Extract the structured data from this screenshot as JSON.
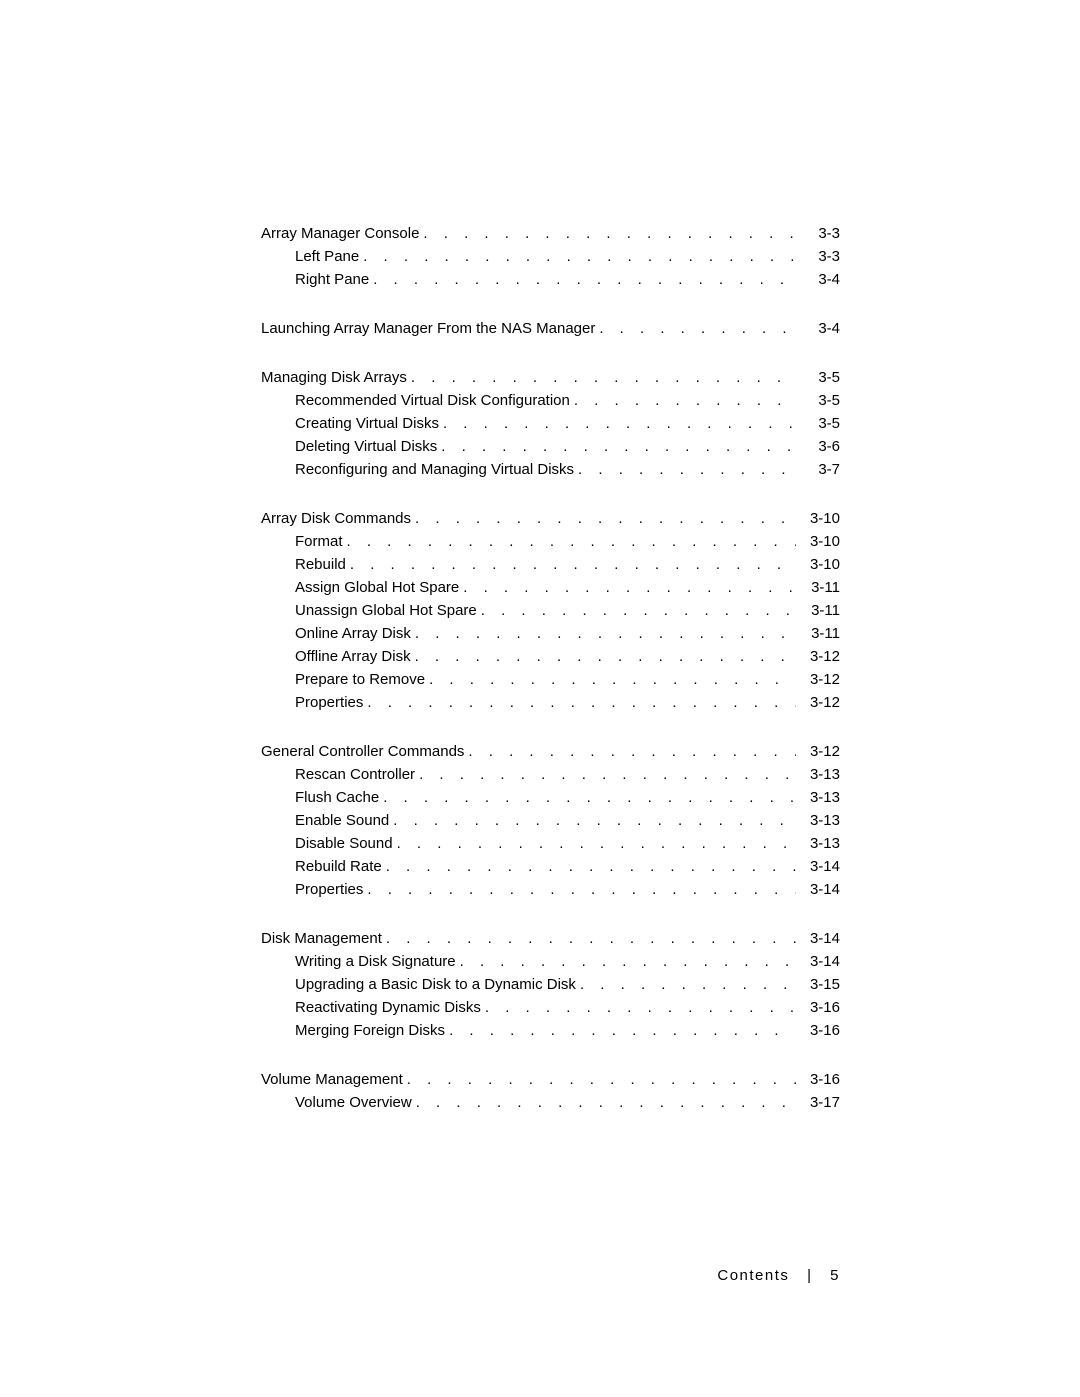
{
  "footer": {
    "label": "Contents",
    "separator": "|",
    "page_number": "5"
  },
  "sections": [
    {
      "entries": [
        {
          "level": 0,
          "label": "Array Manager Console",
          "page": "3-3"
        },
        {
          "level": 1,
          "label": "Left Pane",
          "page": "3-3"
        },
        {
          "level": 1,
          "label": "Right Pane",
          "page": "3-4"
        }
      ]
    },
    {
      "entries": [
        {
          "level": 0,
          "label": "Launching Array Manager From the NAS Manager",
          "page": "3-4"
        }
      ]
    },
    {
      "entries": [
        {
          "level": 0,
          "label": "Managing Disk Arrays",
          "page": "3-5"
        },
        {
          "level": 1,
          "label": "Recommended Virtual Disk Configuration",
          "page": "3-5"
        },
        {
          "level": 1,
          "label": "Creating Virtual Disks",
          "page": "3-5"
        },
        {
          "level": 1,
          "label": "Deleting Virtual Disks",
          "page": "3-6"
        },
        {
          "level": 1,
          "label": "Reconfiguring and Managing Virtual Disks",
          "page": "3-7"
        }
      ]
    },
    {
      "entries": [
        {
          "level": 0,
          "label": "Array Disk Commands",
          "page": "3-10"
        },
        {
          "level": 1,
          "label": "Format",
          "page": "3-10"
        },
        {
          "level": 1,
          "label": "Rebuild",
          "page": "3-10"
        },
        {
          "level": 1,
          "label": "Assign Global Hot Spare",
          "page": "3-11"
        },
        {
          "level": 1,
          "label": "Unassign Global Hot Spare",
          "page": "3-11"
        },
        {
          "level": 1,
          "label": "Online Array Disk",
          "page": "3-11"
        },
        {
          "level": 1,
          "label": "Offline Array Disk",
          "page": "3-12"
        },
        {
          "level": 1,
          "label": "Prepare to Remove",
          "page": "3-12"
        },
        {
          "level": 1,
          "label": "Properties",
          "page": "3-12"
        }
      ]
    },
    {
      "entries": [
        {
          "level": 0,
          "label": "General Controller Commands",
          "page": "3-12"
        },
        {
          "level": 1,
          "label": "Rescan Controller",
          "page": "3-13"
        },
        {
          "level": 1,
          "label": "Flush Cache",
          "page": "3-13"
        },
        {
          "level": 1,
          "label": "Enable Sound",
          "page": "3-13"
        },
        {
          "level": 1,
          "label": "Disable Sound",
          "page": "3-13"
        },
        {
          "level": 1,
          "label": "Rebuild Rate",
          "page": "3-14"
        },
        {
          "level": 1,
          "label": "Properties",
          "page": "3-14"
        }
      ]
    },
    {
      "entries": [
        {
          "level": 0,
          "label": "Disk Management",
          "page": "3-14"
        },
        {
          "level": 1,
          "label": "Writing a Disk Signature",
          "page": "3-14"
        },
        {
          "level": 1,
          "label": "Upgrading a Basic Disk to a Dynamic Disk",
          "page": "3-15"
        },
        {
          "level": 1,
          "label": "Reactivating Dynamic Disks",
          "page": "3-16"
        },
        {
          "level": 1,
          "label": "Merging Foreign Disks",
          "page": "3-16"
        }
      ]
    },
    {
      "entries": [
        {
          "level": 0,
          "label": "Volume Management",
          "page": "3-16"
        },
        {
          "level": 1,
          "label": "Volume Overview",
          "page": "3-17"
        }
      ]
    }
  ]
}
